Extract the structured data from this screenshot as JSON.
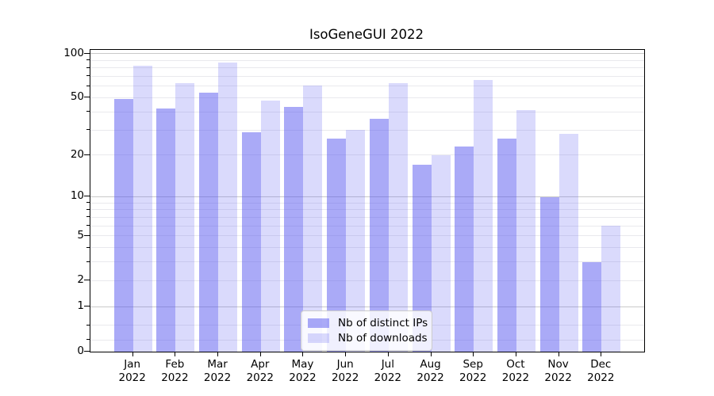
{
  "title": "IsoGeneGUI 2022",
  "legend": {
    "items": [
      {
        "label": "Nb of distinct IPs",
        "color": "rgba(85,86,240,0.50)"
      },
      {
        "label": "Nb of downloads",
        "color": "rgba(85,86,240,0.22)"
      }
    ]
  },
  "chart_data": {
    "type": "bar",
    "title": "IsoGeneGUI 2022",
    "categories": [
      {
        "month": "Jan",
        "year": "2022"
      },
      {
        "month": "Feb",
        "year": "2022"
      },
      {
        "month": "Mar",
        "year": "2022"
      },
      {
        "month": "Apr",
        "year": "2022"
      },
      {
        "month": "May",
        "year": "2022"
      },
      {
        "month": "Jun",
        "year": "2022"
      },
      {
        "month": "Jul",
        "year": "2022"
      },
      {
        "month": "Aug",
        "year": "2022"
      },
      {
        "month": "Sep",
        "year": "2022"
      },
      {
        "month": "Oct",
        "year": "2022"
      },
      {
        "month": "Nov",
        "year": "2022"
      },
      {
        "month": "Dec",
        "year": "2022"
      }
    ],
    "series": [
      {
        "name": "Nb of distinct IPs",
        "color": "rgba(85,86,240,0.50)",
        "values": [
          49,
          42,
          54,
          29,
          43,
          26,
          36,
          17,
          23,
          26,
          10,
          3
        ]
      },
      {
        "name": "Nb of downloads",
        "color": "rgba(85,86,240,0.22)",
        "values": [
          83,
          63,
          87,
          48,
          61,
          30,
          63,
          20,
          66,
          41,
          28,
          6
        ]
      }
    ],
    "xlabel": "",
    "ylabel": "",
    "yscale": "log1p",
    "ylim": [
      0,
      106
    ],
    "yticks": [
      {
        "label": "100",
        "value": 100
      },
      {
        "label": "50",
        "value": 50
      },
      {
        "label": "20",
        "value": 20
      },
      {
        "label": "10",
        "value": 10
      },
      {
        "label": "5",
        "value": 5
      },
      {
        "label": "2",
        "value": 2
      },
      {
        "label": "1",
        "value": 1
      },
      {
        "label": "0",
        "value": 0
      }
    ],
    "grid": {
      "major_values": [
        1,
        10,
        100
      ],
      "major_color": "#c9c9c9",
      "minor_values": [
        0.2,
        0.5,
        2,
        3,
        4,
        5,
        6,
        7,
        8,
        9,
        20,
        30,
        40,
        50,
        60,
        70,
        80,
        90
      ],
      "minor_color": "#e9e9ed"
    },
    "legend_position": "lower center",
    "spine_color": "#000000"
  }
}
